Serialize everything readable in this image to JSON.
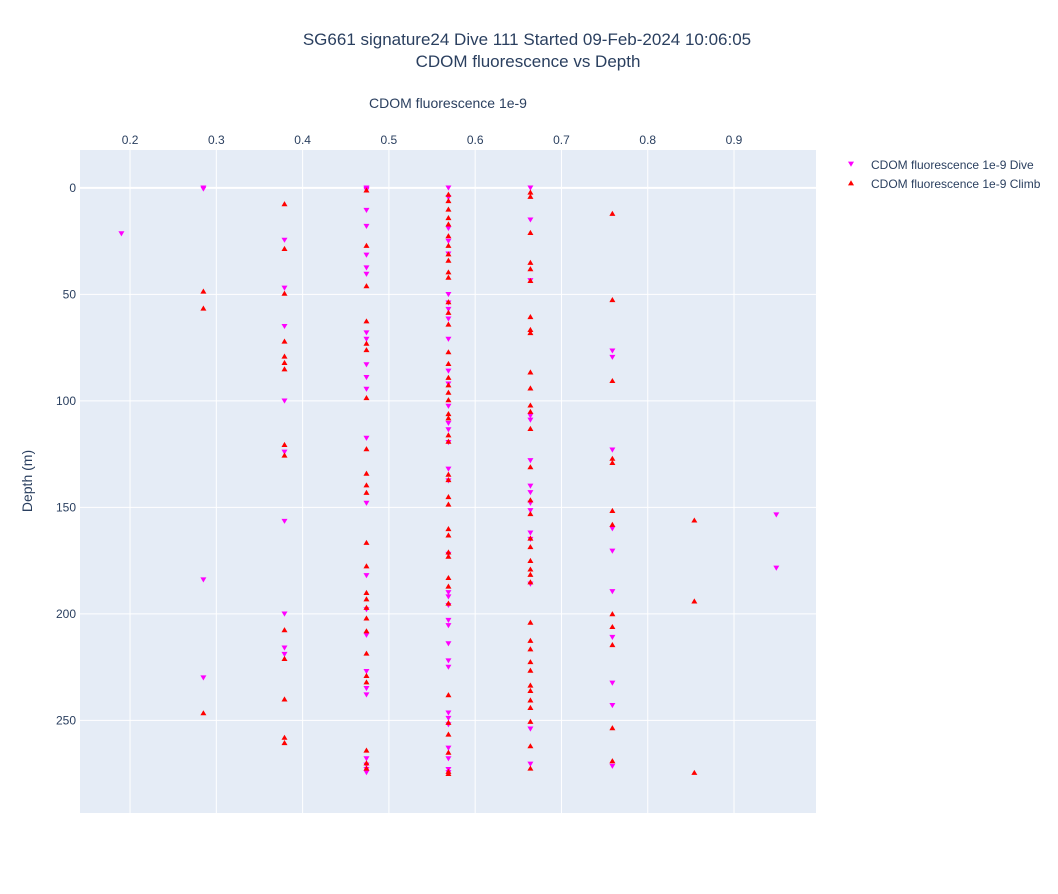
{
  "chart_data": {
    "type": "scatter",
    "title": "SG661 signature24 Dive 111 Started 09-Feb-2024 10:06:05",
    "subtitle": "CDOM fluorescence vs Depth",
    "xlabel": "CDOM fluorescence 1e-9",
    "ylabel": "Depth (m)",
    "xlim": [
      0.142,
      0.995
    ],
    "ylim": [
      293.5,
      -17.8
    ],
    "y_reversed": true,
    "x_axis_position": "top",
    "x_ticks": [
      "0.2",
      "0.3",
      "0.4",
      "0.5",
      "0.6",
      "0.7",
      "0.8",
      "0.9"
    ],
    "y_ticks": [
      "0",
      "50",
      "100",
      "150",
      "200",
      "250"
    ],
    "grid": true,
    "legend_position": "right",
    "background_color": "#e5ecf6",
    "series": [
      {
        "name": "CDOM fluorescence 1e-9 Dive",
        "marker": "triangle-down",
        "color": "#ff00ff",
        "points": [
          [
            0.19,
            21.5
          ],
          [
            0.285,
            0
          ],
          [
            0.285,
            0.5
          ],
          [
            0.285,
            184
          ],
          [
            0.285,
            230
          ],
          [
            0.379,
            24.5
          ],
          [
            0.379,
            47
          ],
          [
            0.379,
            65
          ],
          [
            0.379,
            100
          ],
          [
            0.379,
            124
          ],
          [
            0.379,
            156.5
          ],
          [
            0.379,
            200
          ],
          [
            0.379,
            216
          ],
          [
            0.379,
            219
          ],
          [
            0.474,
            0
          ],
          [
            0.474,
            0.5
          ],
          [
            0.474,
            1
          ],
          [
            0.474,
            10.5
          ],
          [
            0.474,
            18
          ],
          [
            0.474,
            31.5
          ],
          [
            0.474,
            37.5
          ],
          [
            0.474,
            40.5
          ],
          [
            0.474,
            68
          ],
          [
            0.474,
            71
          ],
          [
            0.474,
            83
          ],
          [
            0.474,
            89
          ],
          [
            0.474,
            94.5
          ],
          [
            0.474,
            117.5
          ],
          [
            0.474,
            148
          ],
          [
            0.474,
            182
          ],
          [
            0.474,
            198
          ],
          [
            0.474,
            210
          ],
          [
            0.474,
            227
          ],
          [
            0.474,
            235
          ],
          [
            0.474,
            238
          ],
          [
            0.474,
            268
          ],
          [
            0.474,
            271
          ],
          [
            0.474,
            273
          ],
          [
            0.474,
            274.5
          ],
          [
            0.569,
            0
          ],
          [
            0.569,
            4.5
          ],
          [
            0.569,
            19
          ],
          [
            0.569,
            25
          ],
          [
            0.569,
            31
          ],
          [
            0.569,
            50
          ],
          [
            0.569,
            54
          ],
          [
            0.569,
            57
          ],
          [
            0.569,
            61.5
          ],
          [
            0.569,
            71
          ],
          [
            0.569,
            86
          ],
          [
            0.569,
            92
          ],
          [
            0.569,
            102.5
          ],
          [
            0.569,
            110.5
          ],
          [
            0.569,
            113.5
          ],
          [
            0.569,
            119.5
          ],
          [
            0.569,
            132
          ],
          [
            0.569,
            137.5
          ],
          [
            0.569,
            172
          ],
          [
            0.569,
            190
          ],
          [
            0.569,
            192
          ],
          [
            0.569,
            196
          ],
          [
            0.569,
            203
          ],
          [
            0.569,
            205.5
          ],
          [
            0.569,
            214
          ],
          [
            0.569,
            222
          ],
          [
            0.569,
            225
          ],
          [
            0.569,
            246.5
          ],
          [
            0.569,
            249
          ],
          [
            0.569,
            252
          ],
          [
            0.569,
            263
          ],
          [
            0.569,
            268
          ],
          [
            0.569,
            273
          ],
          [
            0.569,
            274.5
          ],
          [
            0.664,
            0
          ],
          [
            0.664,
            15
          ],
          [
            0.664,
            43.5
          ],
          [
            0.664,
            107
          ],
          [
            0.664,
            109
          ],
          [
            0.664,
            128
          ],
          [
            0.664,
            140
          ],
          [
            0.664,
            143
          ],
          [
            0.664,
            148
          ],
          [
            0.664,
            151.5
          ],
          [
            0.664,
            162
          ],
          [
            0.664,
            165
          ],
          [
            0.664,
            186
          ],
          [
            0.664,
            254
          ],
          [
            0.664,
            270.5
          ],
          [
            0.759,
            76.5
          ],
          [
            0.759,
            79.5
          ],
          [
            0.759,
            123
          ],
          [
            0.759,
            160
          ],
          [
            0.759,
            170.5
          ],
          [
            0.759,
            189.5
          ],
          [
            0.759,
            211
          ],
          [
            0.759,
            232.5
          ],
          [
            0.759,
            243
          ],
          [
            0.759,
            271.5
          ],
          [
            0.949,
            153.5
          ],
          [
            0.949,
            178.5
          ]
        ]
      },
      {
        "name": "CDOM fluorescence 1e-9 Climb",
        "marker": "triangle-up",
        "color": "#ff0000",
        "points": [
          [
            0.285,
            48.5
          ],
          [
            0.285,
            56.5
          ],
          [
            0.285,
            246.5
          ],
          [
            0.379,
            7.5
          ],
          [
            0.379,
            28.5
          ],
          [
            0.379,
            49.5
          ],
          [
            0.379,
            72
          ],
          [
            0.379,
            79
          ],
          [
            0.379,
            82
          ],
          [
            0.379,
            85
          ],
          [
            0.379,
            120.5
          ],
          [
            0.379,
            125.5
          ],
          [
            0.379,
            207.5
          ],
          [
            0.379,
            221
          ],
          [
            0.379,
            240
          ],
          [
            0.379,
            258
          ],
          [
            0.379,
            260.5
          ],
          [
            0.474,
            1
          ],
          [
            0.474,
            27
          ],
          [
            0.474,
            46
          ],
          [
            0.474,
            62.5
          ],
          [
            0.474,
            73
          ],
          [
            0.474,
            76
          ],
          [
            0.474,
            98.5
          ],
          [
            0.474,
            122.5
          ],
          [
            0.474,
            134
          ],
          [
            0.474,
            139.5
          ],
          [
            0.474,
            143
          ],
          [
            0.474,
            166.5
          ],
          [
            0.474,
            177.5
          ],
          [
            0.474,
            190
          ],
          [
            0.474,
            193
          ],
          [
            0.474,
            197
          ],
          [
            0.474,
            202
          ],
          [
            0.474,
            208
          ],
          [
            0.474,
            218.5
          ],
          [
            0.474,
            229
          ],
          [
            0.474,
            232
          ],
          [
            0.474,
            264
          ],
          [
            0.474,
            270
          ],
          [
            0.474,
            272.5
          ],
          [
            0.569,
            3
          ],
          [
            0.569,
            6
          ],
          [
            0.569,
            10
          ],
          [
            0.569,
            14
          ],
          [
            0.569,
            17
          ],
          [
            0.569,
            22.5
          ],
          [
            0.569,
            27
          ],
          [
            0.569,
            31
          ],
          [
            0.569,
            34
          ],
          [
            0.569,
            39.5
          ],
          [
            0.569,
            42
          ],
          [
            0.569,
            53.5
          ],
          [
            0.569,
            58.5
          ],
          [
            0.569,
            64
          ],
          [
            0.569,
            77
          ],
          [
            0.569,
            82.5
          ],
          [
            0.569,
            89
          ],
          [
            0.569,
            92.5
          ],
          [
            0.569,
            96
          ],
          [
            0.569,
            99.5
          ],
          [
            0.569,
            106
          ],
          [
            0.569,
            108
          ],
          [
            0.569,
            116
          ],
          [
            0.569,
            119
          ],
          [
            0.569,
            134.5
          ],
          [
            0.569,
            137
          ],
          [
            0.569,
            145
          ],
          [
            0.569,
            148.5
          ],
          [
            0.569,
            160
          ],
          [
            0.569,
            163
          ],
          [
            0.569,
            171
          ],
          [
            0.569,
            173
          ],
          [
            0.569,
            183
          ],
          [
            0.569,
            187
          ],
          [
            0.569,
            195
          ],
          [
            0.569,
            238
          ],
          [
            0.569,
            251
          ],
          [
            0.569,
            256.5
          ],
          [
            0.569,
            265
          ],
          [
            0.569,
            274
          ],
          [
            0.569,
            275
          ],
          [
            0.664,
            2
          ],
          [
            0.664,
            4
          ],
          [
            0.664,
            21
          ],
          [
            0.664,
            35
          ],
          [
            0.664,
            38
          ],
          [
            0.664,
            43.5
          ],
          [
            0.664,
            60.5
          ],
          [
            0.664,
            66.5
          ],
          [
            0.664,
            68
          ],
          [
            0.664,
            86.5
          ],
          [
            0.664,
            94
          ],
          [
            0.664,
            102
          ],
          [
            0.664,
            105
          ],
          [
            0.664,
            113
          ],
          [
            0.664,
            131
          ],
          [
            0.664,
            146.5
          ],
          [
            0.664,
            153
          ],
          [
            0.664,
            164.5
          ],
          [
            0.664,
            168.5
          ],
          [
            0.664,
            175
          ],
          [
            0.664,
            179
          ],
          [
            0.664,
            181.5
          ],
          [
            0.664,
            185
          ],
          [
            0.664,
            204
          ],
          [
            0.664,
            212.5
          ],
          [
            0.664,
            216.5
          ],
          [
            0.664,
            222.5
          ],
          [
            0.664,
            226.5
          ],
          [
            0.664,
            233.5
          ],
          [
            0.664,
            236
          ],
          [
            0.664,
            240.5
          ],
          [
            0.664,
            244
          ],
          [
            0.664,
            250.5
          ],
          [
            0.664,
            262
          ],
          [
            0.664,
            272.5
          ],
          [
            0.759,
            12
          ],
          [
            0.759,
            52.5
          ],
          [
            0.759,
            90.5
          ],
          [
            0.759,
            127
          ],
          [
            0.759,
            129
          ],
          [
            0.759,
            151.5
          ],
          [
            0.759,
            158
          ],
          [
            0.759,
            200
          ],
          [
            0.759,
            206
          ],
          [
            0.759,
            214.5
          ],
          [
            0.759,
            253.5
          ],
          [
            0.759,
            269
          ],
          [
            0.854,
            156
          ],
          [
            0.854,
            194
          ],
          [
            0.854,
            274.5
          ]
        ]
      }
    ]
  }
}
